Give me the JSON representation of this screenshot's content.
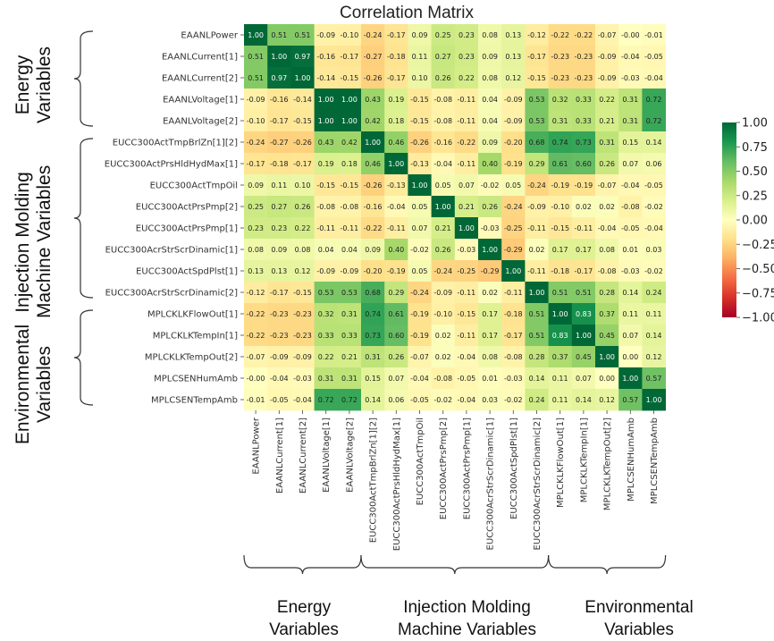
{
  "chart_data": {
    "type": "heatmap",
    "title": "Correlation Matrix",
    "labels": [
      "EAANLPower",
      "EAANLCurrent[1]",
      "EAANLCurrent[2]",
      "EAANLVoltage[1]",
      "EAANLVoltage[2]",
      "EUCC300ActTmpBrlZn[1][2]",
      "EUCC300ActPrsHldHydMax[1]",
      "EUCC300ActTmpOil",
      "EUCC300ActPrsPmp[2]",
      "EUCC300ActPrsPmp[1]",
      "EUCC300AcrStrScrDinamic[1]",
      "EUCC300ActSpdPlst[1]",
      "EUCC300AcrStrScrDinamic[2]",
      "MPLCKLKFlowOut[1]",
      "MPLCKLKTempIn[1]",
      "MPLCKLKTempOut[2]",
      "MPLCSENHumAmb",
      "MPLCSENTempAmb"
    ],
    "matrix": [
      [
        "1.00",
        "0.51",
        "0.51",
        "-0.09",
        "-0.10",
        "-0.24",
        "-0.17",
        "0.09",
        "0.25",
        "0.23",
        "0.08",
        "0.13",
        "-0.12",
        "-0.22",
        "-0.22",
        "-0.07",
        "-0.00",
        "-0.01"
      ],
      [
        "0.51",
        "1.00",
        "0.97",
        "-0.16",
        "-0.17",
        "-0.27",
        "-0.18",
        "0.11",
        "0.27",
        "0.23",
        "0.09",
        "0.13",
        "-0.17",
        "-0.23",
        "-0.23",
        "-0.09",
        "-0.04",
        "-0.05"
      ],
      [
        "0.51",
        "0.97",
        "1.00",
        "-0.14",
        "-0.15",
        "-0.26",
        "-0.17",
        "0.10",
        "0.26",
        "0.22",
        "0.08",
        "0.12",
        "-0.15",
        "-0.23",
        "-0.23",
        "-0.09",
        "-0.03",
        "-0.04"
      ],
      [
        "-0.09",
        "-0.16",
        "-0.14",
        "1.00",
        "1.00",
        "0.43",
        "0.19",
        "-0.15",
        "-0.08",
        "-0.11",
        "0.04",
        "-0.09",
        "0.53",
        "0.32",
        "0.33",
        "0.22",
        "0.31",
        "0.72"
      ],
      [
        "-0.10",
        "-0.17",
        "-0.15",
        "1.00",
        "1.00",
        "0.42",
        "0.18",
        "-0.15",
        "-0.08",
        "-0.11",
        "0.04",
        "-0.09",
        "0.53",
        "0.31",
        "0.33",
        "0.21",
        "0.31",
        "0.72"
      ],
      [
        "-0.24",
        "-0.27",
        "-0.26",
        "0.43",
        "0.42",
        "1.00",
        "0.46",
        "-0.26",
        "-0.16",
        "-0.22",
        "0.09",
        "-0.20",
        "0.68",
        "0.74",
        "0.73",
        "0.31",
        "0.15",
        "0.14"
      ],
      [
        "-0.17",
        "-0.18",
        "-0.17",
        "0.19",
        "0.18",
        "0.46",
        "1.00",
        "-0.13",
        "-0.04",
        "-0.11",
        "0.40",
        "-0.19",
        "0.29",
        "0.61",
        "0.60",
        "0.26",
        "0.07",
        "0.06"
      ],
      [
        "0.09",
        "0.11",
        "0.10",
        "-0.15",
        "-0.15",
        "-0.26",
        "-0.13",
        "1.00",
        "0.05",
        "0.07",
        "-0.02",
        "0.05",
        "-0.24",
        "-0.19",
        "-0.19",
        "-0.07",
        "-0.04",
        "-0.05"
      ],
      [
        "0.25",
        "0.27",
        "0.26",
        "-0.08",
        "-0.08",
        "-0.16",
        "-0.04",
        "0.05",
        "1.00",
        "0.21",
        "0.26",
        "-0.24",
        "-0.09",
        "-0.10",
        "0.02",
        "0.02",
        "-0.08",
        "-0.02"
      ],
      [
        "0.23",
        "0.23",
        "0.22",
        "-0.11",
        "-0.11",
        "-0.22",
        "-0.11",
        "0.07",
        "0.21",
        "1.00",
        "-0.03",
        "-0.25",
        "-0.11",
        "-0.15",
        "-0.11",
        "-0.04",
        "-0.05",
        "-0.04"
      ],
      [
        "0.08",
        "0.09",
        "0.08",
        "0.04",
        "0.04",
        "0.09",
        "0.40",
        "-0.02",
        "0.26",
        "-0.03",
        "1.00",
        "-0.29",
        "0.02",
        "0.17",
        "0.17",
        "0.08",
        "0.01",
        "0.03"
      ],
      [
        "0.13",
        "0.13",
        "0.12",
        "-0.09",
        "-0.09",
        "-0.20",
        "-0.19",
        "0.05",
        "-0.24",
        "-0.25",
        "-0.29",
        "1.00",
        "-0.11",
        "-0.18",
        "-0.17",
        "-0.08",
        "-0.03",
        "-0.02"
      ],
      [
        "-0.12",
        "-0.17",
        "-0.15",
        "0.53",
        "0.53",
        "0.68",
        "0.29",
        "-0.24",
        "-0.09",
        "-0.11",
        "0.02",
        "-0.11",
        "1.00",
        "0.51",
        "0.51",
        "0.28",
        "0.14",
        "0.24"
      ],
      [
        "-0.22",
        "-0.23",
        "-0.23",
        "0.32",
        "0.31",
        "0.74",
        "0.61",
        "-0.19",
        "-0.10",
        "-0.15",
        "0.17",
        "-0.18",
        "0.51",
        "1.00",
        "0.83",
        "0.37",
        "0.11",
        "0.11"
      ],
      [
        "-0.22",
        "-0.23",
        "-0.23",
        "0.33",
        "0.33",
        "0.73",
        "0.60",
        "-0.19",
        "0.02",
        "-0.11",
        "0.17",
        "-0.17",
        "0.51",
        "0.83",
        "1.00",
        "0.45",
        "0.07",
        "0.14"
      ],
      [
        "-0.07",
        "-0.09",
        "-0.09",
        "0.22",
        "0.21",
        "0.31",
        "0.26",
        "-0.07",
        "0.02",
        "-0.04",
        "0.08",
        "-0.08",
        "0.28",
        "0.37",
        "0.45",
        "1.00",
        "0.00",
        "0.12"
      ],
      [
        "-0.00",
        "-0.04",
        "-0.03",
        "0.31",
        "0.31",
        "0.15",
        "0.07",
        "-0.04",
        "-0.08",
        "-0.05",
        "0.01",
        "-0.03",
        "0.14",
        "0.11",
        "0.07",
        "0.00",
        "1.00",
        "0.57"
      ],
      [
        "-0.01",
        "-0.05",
        "-0.04",
        "0.72",
        "0.72",
        "0.14",
        "0.06",
        "-0.05",
        "-0.02",
        "-0.04",
        "0.03",
        "-0.02",
        "0.24",
        "0.11",
        "0.14",
        "0.12",
        "0.57",
        "1.00"
      ]
    ],
    "colorbar": {
      "range": [
        -1.0,
        1.0
      ],
      "ticks": [
        "1.00",
        "0.75",
        "0.50",
        "0.25",
        "0.00",
        "−0.25",
        "−0.50",
        "−0.75",
        "−1.00"
      ],
      "colormap": [
        "#a50026",
        "#d73027",
        "#f46d43",
        "#fdae61",
        "#fee08b",
        "#ffffbf",
        "#d9ef8b",
        "#a6d96a",
        "#66bd63",
        "#1a9850",
        "#006837"
      ]
    },
    "groups": [
      {
        "label_line1": "Energy",
        "label_line2": "Variables",
        "start": 0,
        "end": 4
      },
      {
        "label_line1": "Injection Molding",
        "label_line2": "Machine Variables",
        "start": 5,
        "end": 12
      },
      {
        "label_line1": "Environmental",
        "label_line2": "Variables",
        "start": 13,
        "end": 17
      }
    ]
  }
}
